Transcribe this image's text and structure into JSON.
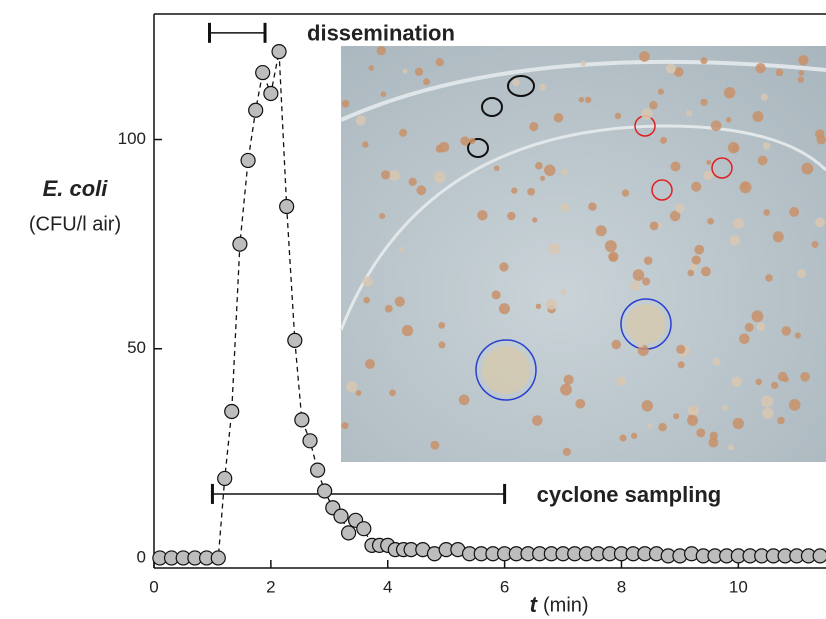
{
  "chart_data": {
    "type": "scatter",
    "ylabel": "E. coli",
    "ylabel_unit": "(CFU/l air)",
    "xlabel": "t",
    "xlabel_unit": "(min)",
    "xlim": [
      0,
      11.5
    ],
    "ylim": [
      -2.4,
      130
    ],
    "xticks": [
      0,
      2,
      4,
      6,
      8,
      10
    ],
    "yticks": [
      0,
      50,
      100
    ],
    "series": [
      {
        "color": "#bdbdbd",
        "x": [
          0.1,
          0.3,
          0.5,
          0.7,
          0.9,
          1.1,
          1.21,
          1.33,
          1.47,
          1.61,
          1.74,
          1.86,
          2.0,
          2.14,
          2.27,
          2.41,
          2.53,
          2.67,
          2.8,
          2.92,
          3.06,
          3.2,
          3.33,
          3.45,
          3.59,
          3.73,
          3.86,
          4.0,
          4.13,
          4.27,
          4.4,
          4.6,
          4.8,
          5.0,
          5.2,
          5.4,
          5.6,
          5.8,
          6.0,
          6.2,
          6.4,
          6.6,
          6.8,
          7.0,
          7.2,
          7.4,
          7.6,
          7.8,
          8.0,
          8.2,
          8.4,
          8.6,
          8.8,
          9.0,
          9.2,
          9.4,
          9.6,
          9.8,
          10.0,
          10.2,
          10.4,
          10.6,
          10.8,
          11.0,
          11.2,
          11.4
        ],
        "values": [
          0,
          0,
          0,
          0,
          0,
          0,
          19,
          35,
          75,
          95,
          107,
          116,
          111,
          121,
          84,
          52,
          33,
          28,
          21,
          16,
          12,
          10,
          6,
          9,
          7,
          3,
          3,
          3,
          2,
          2,
          2,
          2,
          1,
          2,
          2,
          1,
          1,
          1,
          1,
          1,
          1,
          1,
          1,
          1,
          1,
          1,
          1,
          1,
          1,
          1,
          1,
          1,
          0.5,
          0.5,
          1,
          0.5,
          0.5,
          0.5,
          0.5,
          0.5,
          0.5,
          0.5,
          0.5,
          0.5,
          0.5,
          0.5
        ]
      }
    ],
    "annotations": [
      {
        "text": "dissemination",
        "x_start": 0.95,
        "x_end": 1.9,
        "y": 125.5
      },
      {
        "text": "cyclone sampling",
        "x_start": 1.0,
        "x_end": 6.0,
        "y": 15.3
      }
    ]
  }
}
